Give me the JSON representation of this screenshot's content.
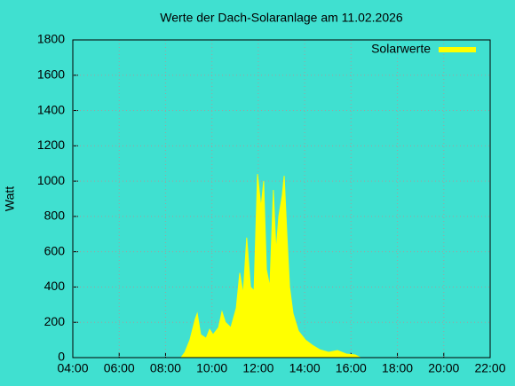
{
  "chart_data": {
    "type": "area",
    "title": "Werte der Dach-Solaranlage am 11.02.2026",
    "y_label": "Watt",
    "x": [
      "08:40",
      "08:50",
      "09:03",
      "09:17",
      "09:22",
      "09:31",
      "09:45",
      "09:54",
      "10:03",
      "10:17",
      "10:26",
      "10:35",
      "10:49",
      "11:03",
      "11:12",
      "11:21",
      "11:30",
      "11:40",
      "11:49",
      "11:58",
      "12:07",
      "12:14",
      "12:21",
      "12:30",
      "12:39",
      "12:46",
      "12:53",
      "13:02",
      "13:07",
      "13:14",
      "13:21",
      "13:30",
      "13:44",
      "14:02",
      "14:20",
      "14:39",
      "15:02",
      "15:25",
      "15:48",
      "16:11",
      "16:24"
    ],
    "series": [
      {
        "name": "Solarwerte",
        "color": "#ffff00",
        "values": [
          0,
          30,
          100,
          220,
          250,
          130,
          110,
          160,
          130,
          170,
          260,
          200,
          170,
          280,
          480,
          360,
          680,
          400,
          380,
          1040,
          850,
          1000,
          500,
          400,
          950,
          600,
          800,
          920,
          1030,
          700,
          400,
          250,
          150,
          100,
          70,
          45,
          30,
          40,
          20,
          15,
          0
        ]
      }
    ],
    "xlim": [
      "04:00",
      "22:00"
    ],
    "xticks": [
      "04:00",
      "06:00",
      "08:00",
      "10:00",
      "12:00",
      "14:00",
      "16:00",
      "18:00",
      "20:00",
      "22:00"
    ],
    "ylim": [
      0,
      1800
    ],
    "yticks": [
      0,
      200,
      400,
      600,
      800,
      1000,
      1200,
      1400,
      1600,
      1800
    ],
    "grid": true,
    "legend": "top-right"
  }
}
